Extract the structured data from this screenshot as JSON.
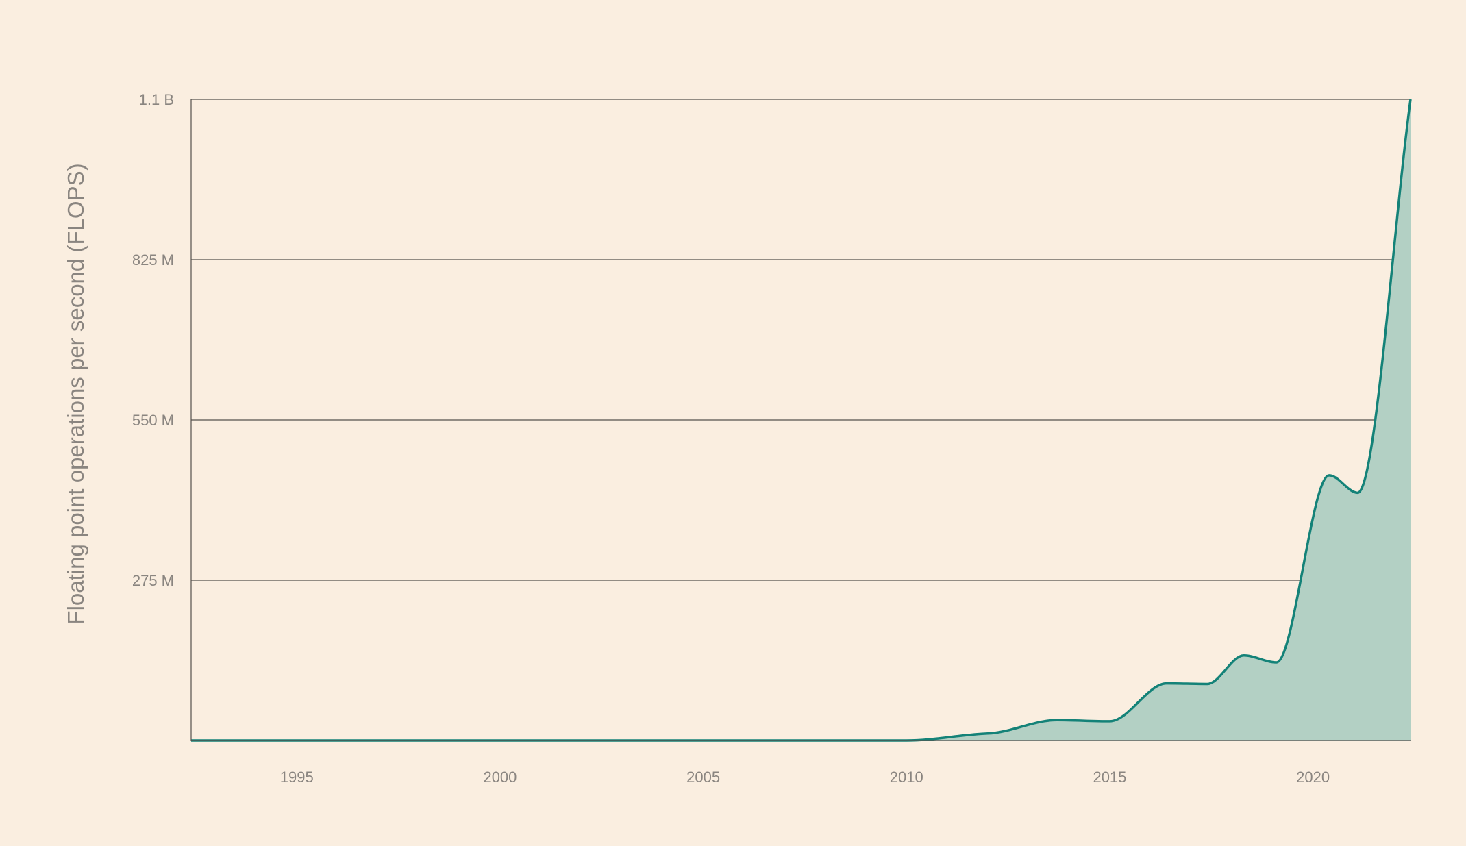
{
  "chart_data": {
    "type": "area",
    "title": "",
    "xlabel": "",
    "ylabel": "Floating point operations per second (FLOPS)",
    "xlim": [
      1992.4,
      2022.4
    ],
    "ylim": [
      0,
      1100000000
    ],
    "x_ticks": [
      1995,
      2000,
      2005,
      2010,
      2015,
      2020
    ],
    "y_ticks": [
      {
        "value": 275000000,
        "label": "275 M"
      },
      {
        "value": 550000000,
        "label": "550 M"
      },
      {
        "value": 825000000,
        "label": "825 M"
      },
      {
        "value": 1100000000,
        "label": "1.1 B"
      }
    ],
    "grid": true,
    "colors": {
      "line": "#148278",
      "fill": "#b3d0c4",
      "grid": "#55514d",
      "background": "#faeee0"
    },
    "series": [
      {
        "x": [
          1992.4,
          2010.0,
          2012.0,
          2013.7,
          2015.0,
          2016.4,
          2017.4,
          2018.3,
          2019.1,
          2020.4,
          2021.1,
          2022.4
        ],
        "values": [
          0,
          0,
          12000000,
          35000000,
          33000000,
          98000000,
          97000000,
          146000000,
          134000000,
          455000000,
          425000000,
          1100000000
        ]
      }
    ]
  }
}
